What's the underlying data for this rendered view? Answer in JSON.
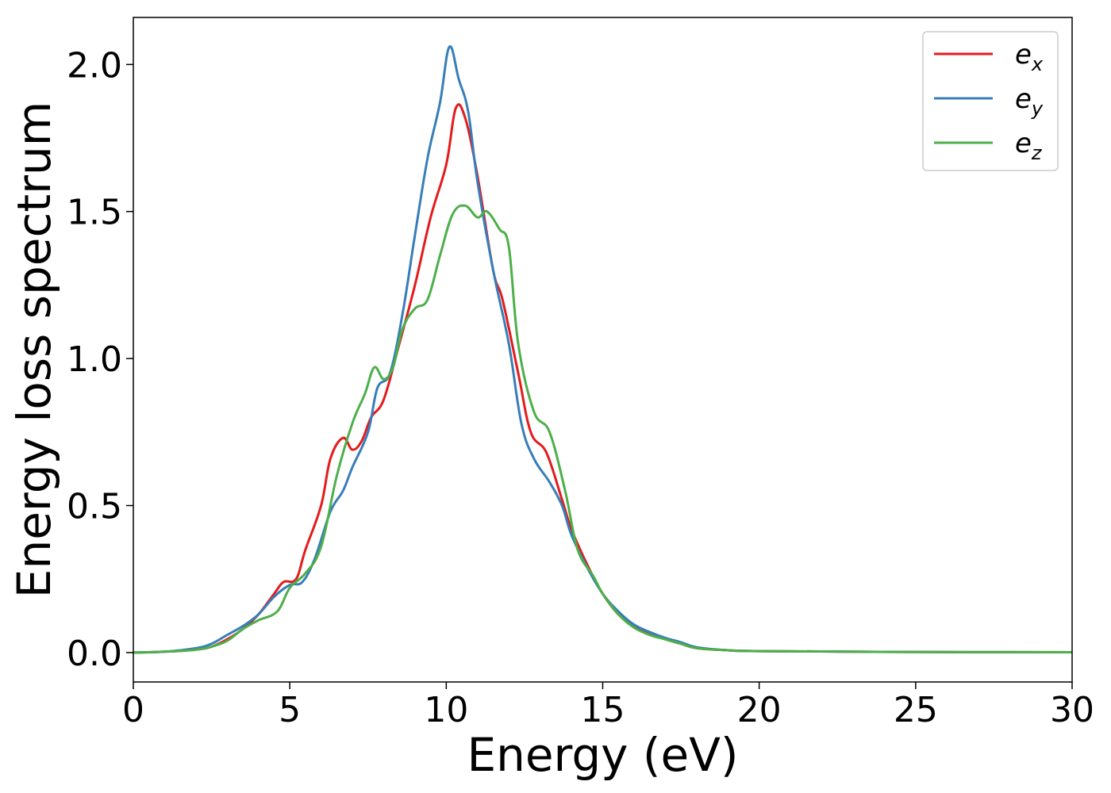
{
  "chart_data": {
    "type": "line",
    "title": "",
    "xlabel": "Energy (eV)",
    "ylabel": "Energy loss spectrum",
    "xlim": [
      0,
      30
    ],
    "ylim": [
      -0.1,
      2.16
    ],
    "xticks": [
      0,
      5,
      10,
      15,
      20,
      25,
      30
    ],
    "xtick_labels": [
      "0",
      "5",
      "10",
      "15",
      "20",
      "25",
      "30"
    ],
    "yticks": [
      0.0,
      0.5,
      1.0,
      1.5,
      2.0
    ],
    "ytick_labels": [
      "0.0",
      "0.5",
      "1.0",
      "1.5",
      "2.0"
    ],
    "grid": false,
    "legend_position": "top-right",
    "series": [
      {
        "name": "e",
        "subscript": "x",
        "color": "#e41a1c",
        "points": [
          [
            0,
            0.0
          ],
          [
            1,
            0.003
          ],
          [
            2,
            0.01
          ],
          [
            2.5,
            0.02
          ],
          [
            3,
            0.045
          ],
          [
            3.5,
            0.08
          ],
          [
            4,
            0.13
          ],
          [
            4.5,
            0.2
          ],
          [
            4.8,
            0.24
          ],
          [
            5.2,
            0.25
          ],
          [
            5.5,
            0.35
          ],
          [
            6,
            0.5
          ],
          [
            6.3,
            0.66
          ],
          [
            6.7,
            0.73
          ],
          [
            7,
            0.69
          ],
          [
            7.3,
            0.72
          ],
          [
            7.6,
            0.8
          ],
          [
            8,
            0.86
          ],
          [
            8.5,
            1.05
          ],
          [
            9,
            1.25
          ],
          [
            9.5,
            1.48
          ],
          [
            10,
            1.66
          ],
          [
            10.3,
            1.85
          ],
          [
            10.6,
            1.82
          ],
          [
            11,
            1.62
          ],
          [
            11.5,
            1.3
          ],
          [
            11.8,
            1.2
          ],
          [
            12.3,
            0.95
          ],
          [
            12.7,
            0.75
          ],
          [
            13.2,
            0.68
          ],
          [
            13.7,
            0.52
          ],
          [
            14,
            0.42
          ],
          [
            14.5,
            0.3
          ],
          [
            15,
            0.2
          ],
          [
            15.5,
            0.13
          ],
          [
            16,
            0.09
          ],
          [
            16.5,
            0.065
          ],
          [
            17,
            0.045
          ],
          [
            17.5,
            0.03
          ],
          [
            18,
            0.015
          ],
          [
            19,
            0.008
          ],
          [
            20,
            0.005
          ],
          [
            25,
            0.002
          ],
          [
            30,
            0.001
          ]
        ]
      },
      {
        "name": "e",
        "subscript": "y",
        "color": "#377eb8",
        "points": [
          [
            0,
            0.0
          ],
          [
            1,
            0.003
          ],
          [
            2,
            0.015
          ],
          [
            2.5,
            0.03
          ],
          [
            3,
            0.06
          ],
          [
            3.5,
            0.09
          ],
          [
            4,
            0.13
          ],
          [
            4.5,
            0.19
          ],
          [
            5,
            0.23
          ],
          [
            5.4,
            0.24
          ],
          [
            5.8,
            0.32
          ],
          [
            6.3,
            0.48
          ],
          [
            6.7,
            0.55
          ],
          [
            7,
            0.63
          ],
          [
            7.5,
            0.75
          ],
          [
            7.8,
            0.9
          ],
          [
            8.2,
            0.95
          ],
          [
            8.6,
            1.15
          ],
          [
            9,
            1.42
          ],
          [
            9.4,
            1.68
          ],
          [
            9.8,
            1.87
          ],
          [
            10.1,
            2.06
          ],
          [
            10.4,
            1.95
          ],
          [
            10.7,
            1.84
          ],
          [
            11,
            1.6
          ],
          [
            11.5,
            1.3
          ],
          [
            12,
            1.05
          ],
          [
            12.4,
            0.78
          ],
          [
            12.8,
            0.66
          ],
          [
            13.3,
            0.58
          ],
          [
            13.7,
            0.5
          ],
          [
            14,
            0.4
          ],
          [
            14.5,
            0.29
          ],
          [
            15,
            0.2
          ],
          [
            15.5,
            0.14
          ],
          [
            16,
            0.095
          ],
          [
            16.5,
            0.07
          ],
          [
            17,
            0.05
          ],
          [
            17.5,
            0.035
          ],
          [
            18,
            0.018
          ],
          [
            19,
            0.008
          ],
          [
            20,
            0.005
          ],
          [
            25,
            0.002
          ],
          [
            30,
            0.001
          ]
        ]
      },
      {
        "name": "e",
        "subscript": "z",
        "color": "#4daf4a",
        "points": [
          [
            0,
            0.0
          ],
          [
            1,
            0.003
          ],
          [
            2,
            0.01
          ],
          [
            2.5,
            0.02
          ],
          [
            3,
            0.04
          ],
          [
            3.5,
            0.08
          ],
          [
            4,
            0.11
          ],
          [
            4.6,
            0.14
          ],
          [
            5,
            0.22
          ],
          [
            5.5,
            0.27
          ],
          [
            6,
            0.36
          ],
          [
            6.5,
            0.6
          ],
          [
            7,
            0.78
          ],
          [
            7.4,
            0.88
          ],
          [
            7.7,
            0.97
          ],
          [
            8,
            0.93
          ],
          [
            8.3,
            0.97
          ],
          [
            8.6,
            1.1
          ],
          [
            9,
            1.17
          ],
          [
            9.4,
            1.2
          ],
          [
            9.8,
            1.35
          ],
          [
            10.2,
            1.49
          ],
          [
            10.6,
            1.52
          ],
          [
            11,
            1.48
          ],
          [
            11.3,
            1.5
          ],
          [
            11.7,
            1.44
          ],
          [
            12,
            1.38
          ],
          [
            12.3,
            1.05
          ],
          [
            12.8,
            0.82
          ],
          [
            13.3,
            0.75
          ],
          [
            13.8,
            0.55
          ],
          [
            14.2,
            0.35
          ],
          [
            14.7,
            0.26
          ],
          [
            15,
            0.2
          ],
          [
            15.5,
            0.13
          ],
          [
            16,
            0.085
          ],
          [
            16.5,
            0.06
          ],
          [
            17,
            0.045
          ],
          [
            17.5,
            0.03
          ],
          [
            18,
            0.015
          ],
          [
            19,
            0.008
          ],
          [
            20,
            0.005
          ],
          [
            25,
            0.002
          ],
          [
            30,
            0.001
          ]
        ]
      }
    ]
  }
}
